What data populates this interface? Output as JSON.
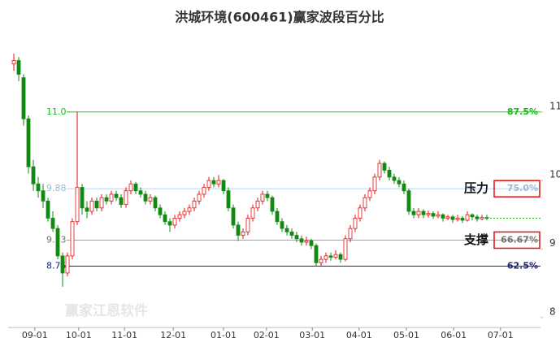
{
  "chart_data": {
    "type": "candlestick",
    "title": "洪城环境(600461)赢家波段百分比",
    "watermark": "赢家江恩软件",
    "up_color": "#e01010",
    "down_color": "#108a10",
    "ylim": [
      7.95,
      12.1
    ],
    "yticks": [
      8,
      9,
      10,
      11
    ],
    "xlim": [
      -1.17,
      108
    ],
    "xticks": [
      {
        "value": 4.3,
        "label": "09-01"
      },
      {
        "value": 13.3,
        "label": "10-01"
      },
      {
        "value": 22.7,
        "label": "11-01"
      },
      {
        "value": 32.7,
        "label": "12-01"
      },
      {
        "value": 43,
        "label": "01-01"
      },
      {
        "value": 51.8,
        "label": "02-01"
      },
      {
        "value": 61.2,
        "label": "03-01"
      },
      {
        "value": 70.8,
        "label": "04-01"
      },
      {
        "value": 80.5,
        "label": "05-01"
      },
      {
        "value": 90.2,
        "label": "06-01"
      },
      {
        "value": 99.8,
        "label": "07-01"
      }
    ],
    "levels": [
      {
        "value": 11,
        "value_label": "11.0",
        "percent": 87.5,
        "percent_label": "87.5%",
        "color": "#10d010",
        "text_color": "#10c010"
      },
      {
        "value": 9.88,
        "percent": 75,
        "percent_label": "75.0%",
        "color": "#b8d4ea",
        "text_color": "#9ab8d0",
        "annotation": "压力"
      },
      {
        "value": 9.13,
        "percent": 66.67,
        "percent_label": "66.67%",
        "color": "#a0a0a0",
        "text_color": "#707070",
        "annotation": "支撑"
      },
      {
        "value": 8.75,
        "percent": 62.5,
        "percent_label": "62.5%",
        "color": "#1a237e",
        "text_color": "#1a237e"
      }
    ],
    "last_price": 9.45,
    "last_price_color": "#10b010",
    "ohlc": [
      [
        11.7,
        11.85,
        11.6,
        11.75
      ],
      [
        11.75,
        11.8,
        11.45,
        11.55
      ],
      [
        11.5,
        11.55,
        10.8,
        10.9
      ],
      [
        10.9,
        10.95,
        10.1,
        10.2
      ],
      [
        10.2,
        10.3,
        9.85,
        9.95
      ],
      [
        9.95,
        10.05,
        9.75,
        9.85
      ],
      [
        9.85,
        9.95,
        9.6,
        9.7
      ],
      [
        9.7,
        9.75,
        9.4,
        9.45
      ],
      [
        9.45,
        9.55,
        9.25,
        9.3
      ],
      [
        9.3,
        9.35,
        8.85,
        8.9
      ],
      [
        8.9,
        8.95,
        8.45,
        8.65
      ],
      [
        8.65,
        8.95,
        8.6,
        8.9
      ],
      [
        8.9,
        9.45,
        8.85,
        9.4
      ],
      [
        9.4,
        11.0,
        9.35,
        9.9
      ],
      [
        9.9,
        9.95,
        9.5,
        9.6
      ],
      [
        9.6,
        9.7,
        9.45,
        9.55
      ],
      [
        9.55,
        9.75,
        9.5,
        9.7
      ],
      [
        9.7,
        9.75,
        9.55,
        9.6
      ],
      [
        9.6,
        9.8,
        9.55,
        9.75
      ],
      [
        9.75,
        9.8,
        9.65,
        9.7
      ],
      [
        9.7,
        9.85,
        9.65,
        9.8
      ],
      [
        9.8,
        9.85,
        9.7,
        9.75
      ],
      [
        9.75,
        9.8,
        9.6,
        9.65
      ],
      [
        9.65,
        9.9,
        9.6,
        9.85
      ],
      [
        9.85,
        10.0,
        9.8,
        9.95
      ],
      [
        9.95,
        9.98,
        9.8,
        9.85
      ],
      [
        9.85,
        9.9,
        9.75,
        9.8
      ],
      [
        9.8,
        9.85,
        9.65,
        9.7
      ],
      [
        9.7,
        9.8,
        9.65,
        9.75
      ],
      [
        9.75,
        9.78,
        9.55,
        9.6
      ],
      [
        9.6,
        9.65,
        9.45,
        9.5
      ],
      [
        9.5,
        9.55,
        9.35,
        9.4
      ],
      [
        9.4,
        9.45,
        9.25,
        9.35
      ],
      [
        9.35,
        9.5,
        9.3,
        9.45
      ],
      [
        9.45,
        9.55,
        9.4,
        9.5
      ],
      [
        9.5,
        9.6,
        9.45,
        9.55
      ],
      [
        9.55,
        9.65,
        9.5,
        9.6
      ],
      [
        9.6,
        9.75,
        9.55,
        9.7
      ],
      [
        9.7,
        9.85,
        9.65,
        9.8
      ],
      [
        9.8,
        9.95,
        9.75,
        9.9
      ],
      [
        9.9,
        10.05,
        9.85,
        10.0
      ],
      [
        10.0,
        10.05,
        9.9,
        9.95
      ],
      [
        9.95,
        10.08,
        9.9,
        10.0
      ],
      [
        10.0,
        10.02,
        9.8,
        9.85
      ],
      [
        9.85,
        9.9,
        9.55,
        9.6
      ],
      [
        9.6,
        9.65,
        9.3,
        9.35
      ],
      [
        9.35,
        9.4,
        9.12,
        9.2
      ],
      [
        9.2,
        9.3,
        9.15,
        9.25
      ],
      [
        9.25,
        9.5,
        9.2,
        9.45
      ],
      [
        9.45,
        9.65,
        9.4,
        9.6
      ],
      [
        9.6,
        9.75,
        9.55,
        9.7
      ],
      [
        9.7,
        9.85,
        9.65,
        9.8
      ],
      [
        9.8,
        9.85,
        9.7,
        9.75
      ],
      [
        9.75,
        9.78,
        9.5,
        9.55
      ],
      [
        9.55,
        9.6,
        9.35,
        9.4
      ],
      [
        9.4,
        9.45,
        9.25,
        9.3
      ],
      [
        9.3,
        9.35,
        9.2,
        9.25
      ],
      [
        9.25,
        9.3,
        9.15,
        9.2
      ],
      [
        9.2,
        9.25,
        9.1,
        9.15
      ],
      [
        9.15,
        9.2,
        9.05,
        9.1
      ],
      [
        9.1,
        9.18,
        9.05,
        9.12
      ],
      [
        9.12,
        9.15,
        9.0,
        9.05
      ],
      [
        9.05,
        9.08,
        8.75,
        8.8
      ],
      [
        8.8,
        8.9,
        8.75,
        8.85
      ],
      [
        8.85,
        8.95,
        8.8,
        8.9
      ],
      [
        8.9,
        8.95,
        8.83,
        8.88
      ],
      [
        8.88,
        8.98,
        8.85,
        8.92
      ],
      [
        8.92,
        8.95,
        8.8,
        8.85
      ],
      [
        8.85,
        9.2,
        8.82,
        9.15
      ],
      [
        9.15,
        9.35,
        9.1,
        9.3
      ],
      [
        9.3,
        9.5,
        9.25,
        9.45
      ],
      [
        9.45,
        9.65,
        9.4,
        9.6
      ],
      [
        9.6,
        9.8,
        9.55,
        9.75
      ],
      [
        9.75,
        9.9,
        9.7,
        9.85
      ],
      [
        9.85,
        10.1,
        9.8,
        10.05
      ],
      [
        10.05,
        10.3,
        10.0,
        10.25
      ],
      [
        10.25,
        10.28,
        10.1,
        10.15
      ],
      [
        10.15,
        10.2,
        10.0,
        10.05
      ],
      [
        10.05,
        10.1,
        9.95,
        10.0
      ],
      [
        10.0,
        10.05,
        9.9,
        9.95
      ],
      [
        9.95,
        10.0,
        9.8,
        9.85
      ],
      [
        9.85,
        9.88,
        9.5,
        9.55
      ],
      [
        9.55,
        9.6,
        9.45,
        9.5
      ],
      [
        9.5,
        9.6,
        9.45,
        9.55
      ],
      [
        9.55,
        9.58,
        9.45,
        9.5
      ],
      [
        9.5,
        9.56,
        9.46,
        9.52
      ],
      [
        9.52,
        9.55,
        9.44,
        9.48
      ],
      [
        9.48,
        9.55,
        9.45,
        9.5
      ],
      [
        9.5,
        9.52,
        9.4,
        9.45
      ],
      [
        9.45,
        9.5,
        9.42,
        9.47
      ],
      [
        9.47,
        9.5,
        9.38,
        9.43
      ],
      [
        9.43,
        9.5,
        9.4,
        9.45
      ],
      [
        9.45,
        9.48,
        9.38,
        9.42
      ],
      [
        9.42,
        9.55,
        9.4,
        9.5
      ],
      [
        9.5,
        9.52,
        9.42,
        9.47
      ],
      [
        9.47,
        9.5,
        9.4,
        9.44
      ],
      [
        9.44,
        9.5,
        9.42,
        9.46
      ],
      [
        9.46,
        9.5,
        9.42,
        9.45
      ]
    ]
  }
}
